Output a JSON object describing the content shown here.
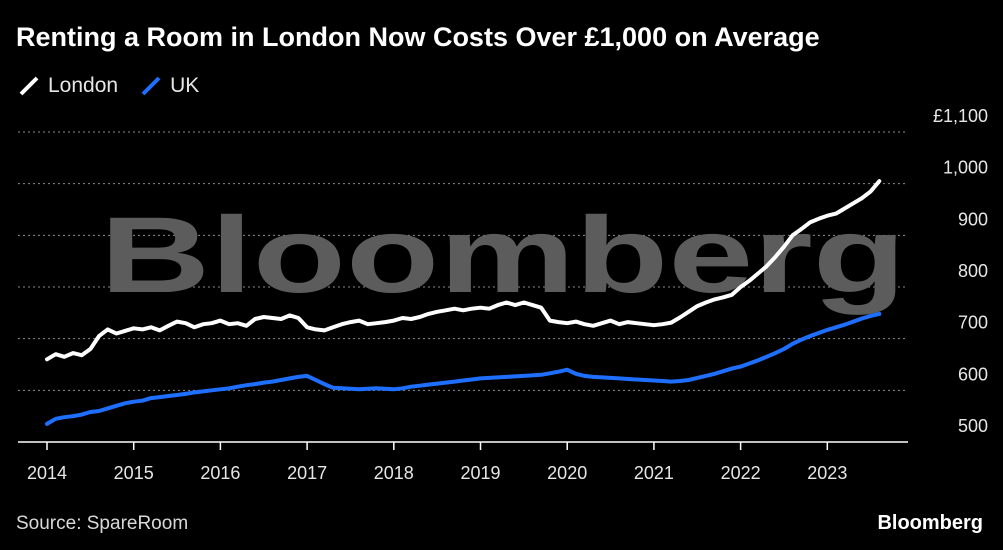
{
  "header": {
    "title": "Renting a Room in London Now Costs Over £1,000 on Average"
  },
  "footer": {
    "source": "Source: SpareRoom",
    "brand": "Bloomberg"
  },
  "watermark": "Bloomberg",
  "colors": {
    "background": "#000000",
    "london": "#ffffff",
    "uk": "#1f6fff",
    "grid": "#8c8c8c"
  },
  "chart_data": {
    "type": "line",
    "title": "Renting a Room in London Now Costs Over £1,000 on Average",
    "xlabel": "",
    "ylabel": "",
    "xlim": [
      2014,
      2023.7
    ],
    "ylim": [
      500,
      1100
    ],
    "x_ticks": [
      2014,
      2015,
      2016,
      2017,
      2018,
      2019,
      2020,
      2021,
      2022,
      2023
    ],
    "x_tick_labels": [
      "2014",
      "2015",
      "2016",
      "2017",
      "2018",
      "2019",
      "2020",
      "2021",
      "2022",
      "2023"
    ],
    "y_ticks": [
      500,
      600,
      700,
      800,
      900,
      1000,
      1100
    ],
    "y_tick_labels": [
      "500",
      "600",
      "700",
      "800",
      "900",
      "1,000",
      "£1,100"
    ],
    "grid": true,
    "legend": "top-left",
    "series": [
      {
        "name": "London",
        "color": "#ffffff",
        "x": [
          2014.0,
          2014.1,
          2014.2,
          2014.3,
          2014.4,
          2014.5,
          2014.6,
          2014.7,
          2014.8,
          2014.9,
          2015.0,
          2015.1,
          2015.2,
          2015.3,
          2015.4,
          2015.5,
          2015.6,
          2015.7,
          2015.8,
          2015.9,
          2016.0,
          2016.1,
          2016.2,
          2016.3,
          2016.4,
          2016.5,
          2016.6,
          2016.7,
          2016.8,
          2016.9,
          2017.0,
          2017.1,
          2017.2,
          2017.3,
          2017.4,
          2017.5,
          2017.6,
          2017.7,
          2017.8,
          2017.9,
          2018.0,
          2018.1,
          2018.2,
          2018.3,
          2018.4,
          2018.5,
          2018.6,
          2018.7,
          2018.8,
          2018.9,
          2019.0,
          2019.1,
          2019.2,
          2019.3,
          2019.4,
          2019.5,
          2019.6,
          2019.7,
          2019.8,
          2019.9,
          2020.0,
          2020.1,
          2020.2,
          2020.3,
          2020.4,
          2020.5,
          2020.6,
          2020.7,
          2020.8,
          2020.9,
          2021.0,
          2021.1,
          2021.2,
          2021.3,
          2021.4,
          2021.5,
          2021.6,
          2021.7,
          2021.8,
          2021.9,
          2022.0,
          2022.1,
          2022.2,
          2022.3,
          2022.4,
          2022.5,
          2022.6,
          2022.7,
          2022.8,
          2022.9,
          2023.0,
          2023.1,
          2023.2,
          2023.3,
          2023.4,
          2023.5,
          2023.6
        ],
        "values": [
          660,
          670,
          665,
          672,
          668,
          680,
          705,
          718,
          710,
          715,
          720,
          718,
          722,
          716,
          725,
          733,
          730,
          722,
          728,
          730,
          735,
          728,
          730,
          725,
          738,
          742,
          740,
          738,
          745,
          740,
          722,
          718,
          716,
          722,
          728,
          732,
          735,
          728,
          730,
          732,
          735,
          740,
          738,
          742,
          748,
          752,
          755,
          758,
          755,
          758,
          760,
          758,
          765,
          770,
          765,
          770,
          765,
          760,
          735,
          732,
          730,
          733,
          728,
          725,
          730,
          735,
          728,
          732,
          730,
          728,
          726,
          728,
          731,
          741,
          752,
          763,
          770,
          776,
          780,
          785,
          800,
          812,
          826,
          840,
          858,
          878,
          900,
          912,
          925,
          932,
          938,
          942,
          952,
          962,
          972,
          985,
          1005
        ]
      },
      {
        "name": "UK",
        "color": "#1f6fff",
        "x": [
          2014.0,
          2014.1,
          2014.2,
          2014.3,
          2014.4,
          2014.5,
          2014.6,
          2014.7,
          2014.8,
          2014.9,
          2015.0,
          2015.1,
          2015.2,
          2015.3,
          2015.4,
          2015.5,
          2015.6,
          2015.7,
          2015.8,
          2015.9,
          2016.0,
          2016.1,
          2016.2,
          2016.3,
          2016.4,
          2016.5,
          2016.6,
          2016.7,
          2016.8,
          2016.9,
          2017.0,
          2017.1,
          2017.2,
          2017.3,
          2017.4,
          2017.5,
          2017.6,
          2017.7,
          2017.8,
          2017.9,
          2018.0,
          2018.1,
          2018.2,
          2018.3,
          2018.4,
          2018.5,
          2018.6,
          2018.7,
          2018.8,
          2018.9,
          2019.0,
          2019.1,
          2019.2,
          2019.3,
          2019.4,
          2019.5,
          2019.6,
          2019.7,
          2019.8,
          2019.9,
          2020.0,
          2020.1,
          2020.2,
          2020.3,
          2020.4,
          2020.5,
          2020.6,
          2020.7,
          2020.8,
          2020.9,
          2021.0,
          2021.1,
          2021.2,
          2021.3,
          2021.4,
          2021.5,
          2021.6,
          2021.7,
          2021.8,
          2021.9,
          2022.0,
          2022.1,
          2022.2,
          2022.3,
          2022.4,
          2022.5,
          2022.6,
          2022.7,
          2022.8,
          2022.9,
          2023.0,
          2023.1,
          2023.2,
          2023.3,
          2023.4,
          2023.5,
          2023.6
        ],
        "values": [
          535,
          545,
          548,
          550,
          553,
          558,
          560,
          565,
          570,
          575,
          578,
          580,
          585,
          587,
          589,
          591,
          593,
          596,
          598,
          600,
          602,
          604,
          607,
          610,
          612,
          615,
          617,
          620,
          623,
          626,
          628,
          620,
          612,
          605,
          604,
          603,
          602,
          603,
          604,
          603,
          602,
          604,
          607,
          609,
          611,
          613,
          615,
          617,
          619,
          621,
          623,
          624,
          625,
          626,
          627,
          628,
          629,
          630,
          633,
          636,
          640,
          632,
          628,
          626,
          625,
          624,
          623,
          622,
          621,
          620,
          619,
          618,
          617,
          618,
          620,
          624,
          628,
          632,
          637,
          642,
          646,
          652,
          658,
          665,
          672,
          680,
          690,
          698,
          705,
          711,
          717,
          722,
          727,
          733,
          739,
          744,
          748
        ]
      }
    ]
  }
}
